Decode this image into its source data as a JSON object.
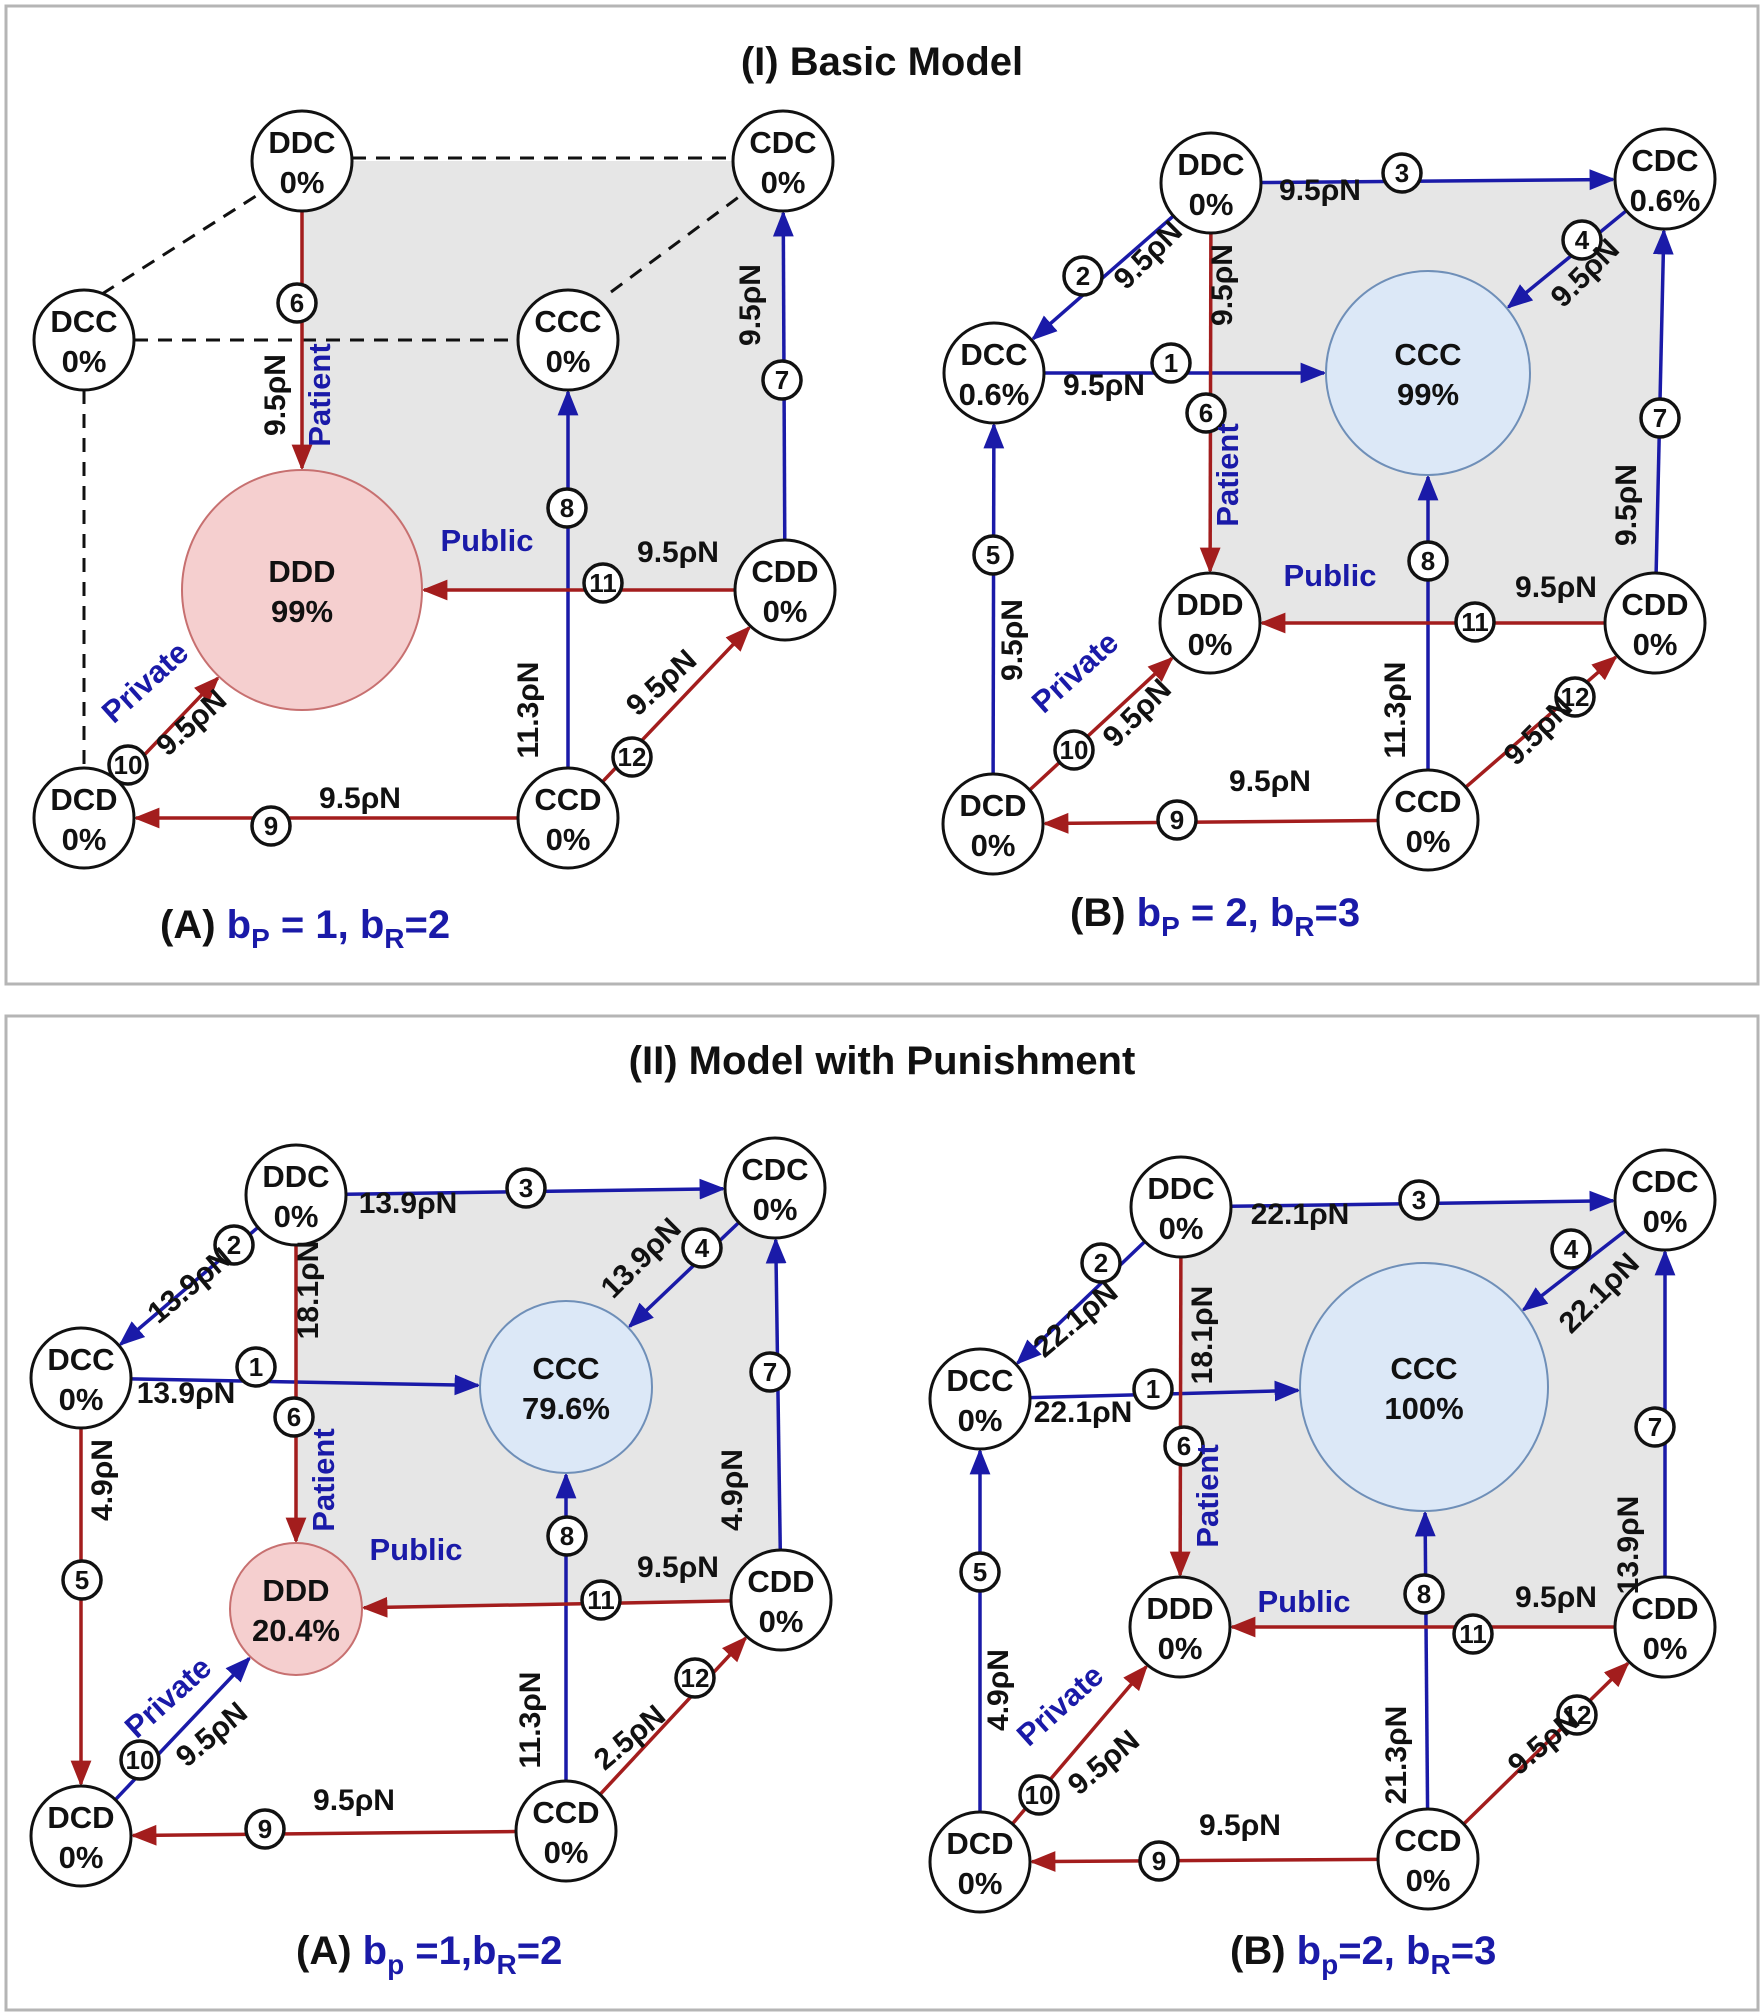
{
  "panels": [
    {
      "title": "(I) Basic Model",
      "subs": [
        {
          "caption": {
            "prefix": "(A) ",
            "b1": "b",
            "s1": "P",
            "mid": " = 1, ",
            "b2": "b",
            "s2": "R",
            "end": "=2"
          },
          "nodes": [
            {
              "id": "DDC",
              "value": "0%"
            },
            {
              "id": "CDC",
              "value": "0%"
            },
            {
              "id": "DCC",
              "value": "0%"
            },
            {
              "id": "CCC",
              "value": "0%"
            },
            {
              "id": "DDD",
              "value": "99%"
            },
            {
              "id": "CDD",
              "value": "0%"
            },
            {
              "id": "DCD",
              "value": "0%"
            },
            {
              "id": "CCD",
              "value": "0%"
            }
          ],
          "edges": [
            {
              "num": "6",
              "from": "DDC",
              "to": "DDD",
              "label": "9.5ρN",
              "color": "#a31d1d"
            },
            {
              "num": "7",
              "from": "CDD",
              "to": "CDC",
              "label": "9.5ρN",
              "color": "#1a1aa8"
            },
            {
              "num": "8",
              "from": "CCD",
              "to": "CCC",
              "label": "11.3ρN",
              "color": "#1a1aa8"
            },
            {
              "num": "11",
              "from": "CDD",
              "to": "DDD",
              "label": "9.5ρN",
              "color": "#a31d1d"
            },
            {
              "num": "12",
              "from": "CCD",
              "to": "CDD",
              "label": "9.5ρN",
              "color": "#a31d1d"
            },
            {
              "num": "10",
              "from": "DCD",
              "to": "DDD",
              "label": "9.5ρN",
              "color": "#a31d1d"
            },
            {
              "num": "9",
              "from": "CCD",
              "to": "DCD",
              "label": "9.5ρN",
              "color": "#a31d1d"
            }
          ],
          "labels": {
            "patient": "Patient",
            "public": "Public",
            "private": "Private"
          }
        },
        {
          "caption": {
            "prefix": "(B) ",
            "b1": "b",
            "s1": "P",
            "mid": " = 2, ",
            "b2": "b",
            "s2": "R",
            "end": "=3"
          },
          "nodes": [
            {
              "id": "DDC",
              "value": "0%"
            },
            {
              "id": "CDC",
              "value": "0.6%"
            },
            {
              "id": "DCC",
              "value": "0.6%"
            },
            {
              "id": "CCC",
              "value": "99%"
            },
            {
              "id": "DDD",
              "value": "0%"
            },
            {
              "id": "CDD",
              "value": "0%"
            },
            {
              "id": "DCD",
              "value": "0%"
            },
            {
              "id": "CCD",
              "value": "0%"
            }
          ],
          "edges": [
            {
              "num": "3",
              "from": "DDC",
              "to": "CDC",
              "label": "9.5ρN",
              "color": "#1a1aa8"
            },
            {
              "num": "2",
              "from": "DDC",
              "to": "DCC",
              "label": "9.5ρN",
              "color": "#1a1aa8"
            },
            {
              "num": "4",
              "from": "CDC",
              "to": "CCC",
              "label": "9.5ρN",
              "color": "#1a1aa8"
            },
            {
              "num": "1",
              "from": "DCC",
              "to": "CCC",
              "label": "9.5ρN",
              "color": "#1a1aa8"
            },
            {
              "num": "6",
              "from": "DDC",
              "to": "DDD",
              "label": "9.5ρN",
              "color": "#a31d1d"
            },
            {
              "num": "7",
              "from": "CDD",
              "to": "CDC",
              "label": "9.5ρN",
              "color": "#1a1aa8"
            },
            {
              "num": "5",
              "from": "DCD",
              "to": "DCC",
              "label": "9.5ρN",
              "color": "#1a1aa8"
            },
            {
              "num": "8",
              "from": "CCD",
              "to": "CCC",
              "label": "11.3ρN",
              "color": "#1a1aa8"
            },
            {
              "num": "11",
              "from": "CDD",
              "to": "DDD",
              "label": "9.5ρN",
              "color": "#a31d1d"
            },
            {
              "num": "10",
              "from": "DCD",
              "to": "DDD",
              "label": "9.5ρN",
              "color": "#a31d1d"
            },
            {
              "num": "12",
              "from": "CCD",
              "to": "CDD",
              "label": "9.5ρN",
              "color": "#a31d1d"
            },
            {
              "num": "9",
              "from": "CCD",
              "to": "DCD",
              "label": "9.5ρN",
              "color": "#a31d1d"
            }
          ],
          "labels": {
            "patient": "Patient",
            "public": "Public",
            "private": "Private"
          }
        }
      ]
    },
    {
      "title": "(II) Model with Punishment",
      "subs": [
        {
          "caption": {
            "prefix": "(A) ",
            "b1": "b",
            "s1": "p",
            "mid": " =1,",
            "b2": "b",
            "s2": "R",
            "end": "=2"
          },
          "nodes": [
            {
              "id": "DDC",
              "value": "0%"
            },
            {
              "id": "CDC",
              "value": "0%"
            },
            {
              "id": "DCC",
              "value": "0%"
            },
            {
              "id": "CCC",
              "value": "79.6%"
            },
            {
              "id": "DDD",
              "value": "20.4%"
            },
            {
              "id": "CDD",
              "value": "0%"
            },
            {
              "id": "DCD",
              "value": "0%"
            },
            {
              "id": "CCD",
              "value": "0%"
            }
          ],
          "edges": [
            {
              "num": "3",
              "from": "DDC",
              "to": "CDC",
              "label": "13.9ρN",
              "color": "#1a1aa8"
            },
            {
              "num": "2",
              "from": "DDC",
              "to": "DCC",
              "label": "13.9ρN",
              "color": "#1a1aa8"
            },
            {
              "num": "4",
              "from": "CDC",
              "to": "CCC",
              "label": "13.9ρN",
              "color": "#1a1aa8"
            },
            {
              "num": "1",
              "from": "DCC",
              "to": "CCC",
              "label": "13.9ρN",
              "color": "#1a1aa8"
            },
            {
              "num": "6",
              "from": "DDC",
              "to": "DDD",
              "label": "18.1ρN",
              "color": "#a31d1d"
            },
            {
              "num": "7",
              "from": "CDD",
              "to": "CDC",
              "label": "4.9ρN",
              "color": "#1a1aa8"
            },
            {
              "num": "5",
              "from": "DCC",
              "to": "DCD",
              "label": "4.9ρN",
              "color": "#a31d1d"
            },
            {
              "num": "8",
              "from": "CCD",
              "to": "CCC",
              "label": "11.3ρN",
              "color": "#1a1aa8"
            },
            {
              "num": "11",
              "from": "CDD",
              "to": "DDD",
              "label": "9.5ρN",
              "color": "#a31d1d"
            },
            {
              "num": "10",
              "from": "DCD",
              "to": "DDD",
              "label": "9.5ρN",
              "color": "#1a1aa8"
            },
            {
              "num": "12",
              "from": "CCD",
              "to": "CDD",
              "label": "2.5ρN",
              "color": "#a31d1d"
            },
            {
              "num": "9",
              "from": "CCD",
              "to": "DCD",
              "label": "9.5ρN",
              "color": "#a31d1d"
            }
          ],
          "labels": {
            "patient": "Patient",
            "public": "Public",
            "private": "Private"
          }
        },
        {
          "caption": {
            "prefix": "(B) ",
            "b1": "b",
            "s1": "p",
            "mid": "=2, ",
            "b2": "b",
            "s2": "R",
            "end": "=3"
          },
          "nodes": [
            {
              "id": "DDC",
              "value": "0%"
            },
            {
              "id": "CDC",
              "value": "0%"
            },
            {
              "id": "DCC",
              "value": "0%"
            },
            {
              "id": "CCC",
              "value": "100%"
            },
            {
              "id": "DDD",
              "value": "0%"
            },
            {
              "id": "CDD",
              "value": "0%"
            },
            {
              "id": "DCD",
              "value": "0%"
            },
            {
              "id": "CCD",
              "value": "0%"
            }
          ],
          "edges": [
            {
              "num": "3",
              "from": "DDC",
              "to": "CDC",
              "label": "22.1ρN",
              "color": "#1a1aa8"
            },
            {
              "num": "2",
              "from": "DDC",
              "to": "DCC",
              "label": "22.1ρN",
              "color": "#1a1aa8"
            },
            {
              "num": "4",
              "from": "CDC",
              "to": "CCC",
              "label": "22.1ρN",
              "color": "#1a1aa8"
            },
            {
              "num": "1",
              "from": "DCC",
              "to": "CCC",
              "label": "22.1ρN",
              "color": "#1a1aa8"
            },
            {
              "num": "6",
              "from": "DDC",
              "to": "DDD",
              "label": "18.1ρN",
              "color": "#a31d1d"
            },
            {
              "num": "7",
              "from": "CDD",
              "to": "CDC",
              "label": "13.9ρN",
              "color": "#1a1aa8"
            },
            {
              "num": "5",
              "from": "DCD",
              "to": "DCC",
              "label": "4.9ρN",
              "color": "#1a1aa8"
            },
            {
              "num": "8",
              "from": "CCD",
              "to": "CCC",
              "label": "21.3ρN",
              "color": "#1a1aa8"
            },
            {
              "num": "11",
              "from": "CDD",
              "to": "DDD",
              "label": "9.5ρN",
              "color": "#a31d1d"
            },
            {
              "num": "10",
              "from": "DCD",
              "to": "DDD",
              "label": "9.5ρN",
              "color": "#a31d1d"
            },
            {
              "num": "12",
              "from": "CCD",
              "to": "CDD",
              "label": "9.5ρN",
              "color": "#a31d1d"
            },
            {
              "num": "9",
              "from": "CCD",
              "to": "DCD",
              "label": "9.5ρN",
              "color": "#a31d1d"
            }
          ],
          "labels": {
            "patient": "Patient",
            "public": "Public",
            "private": "Private"
          }
        }
      ]
    }
  ],
  "colors": {
    "blue_arrow": "#1a1aa8",
    "red_arrow": "#a31d1d",
    "label_blue": "#1a1aa8",
    "face_fill": "#e6e6e6",
    "ccc_fill": "#dce8f7",
    "ddd_fill": "#f5cfcf"
  }
}
